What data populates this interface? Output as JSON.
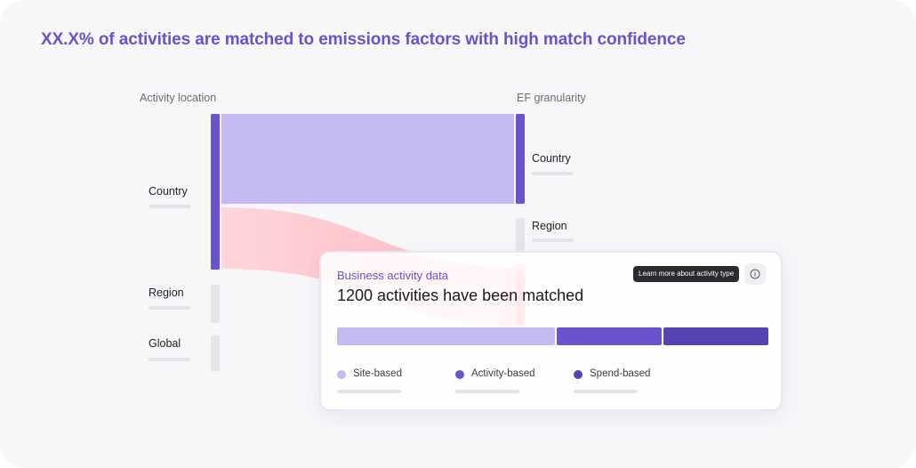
{
  "headline": "XX.X% of activities are matched to emissions factors with high match confidence",
  "sankey": {
    "left_column_label": "Activity location",
    "right_column_label": "EF granularity",
    "left_nodes": [
      {
        "label": "Country"
      },
      {
        "label": "Region"
      },
      {
        "label": "Global"
      }
    ],
    "right_nodes": [
      {
        "label": "Country"
      },
      {
        "label": "Region"
      }
    ],
    "colors": {
      "node_active": "#6b53cf",
      "node_inactive": "#e5e5ea",
      "flow_primary": "#c4b9f3",
      "flow_highlight": "#ffc9cf",
      "node_highlight": "#ff6f7f"
    }
  },
  "card": {
    "subtitle": "Business activity data",
    "title": "1200 activities have been matched",
    "tooltip": "Learn more about activity type",
    "info_icon": "info-icon",
    "segments": [
      {
        "label": "Site-based",
        "share": 0.51,
        "color": "#c4b9f3"
      },
      {
        "label": "Activity-based",
        "share": 0.245,
        "color": "#6b53cf"
      },
      {
        "label": "Spend-based",
        "share": 0.245,
        "color": "#5642b0"
      }
    ]
  }
}
